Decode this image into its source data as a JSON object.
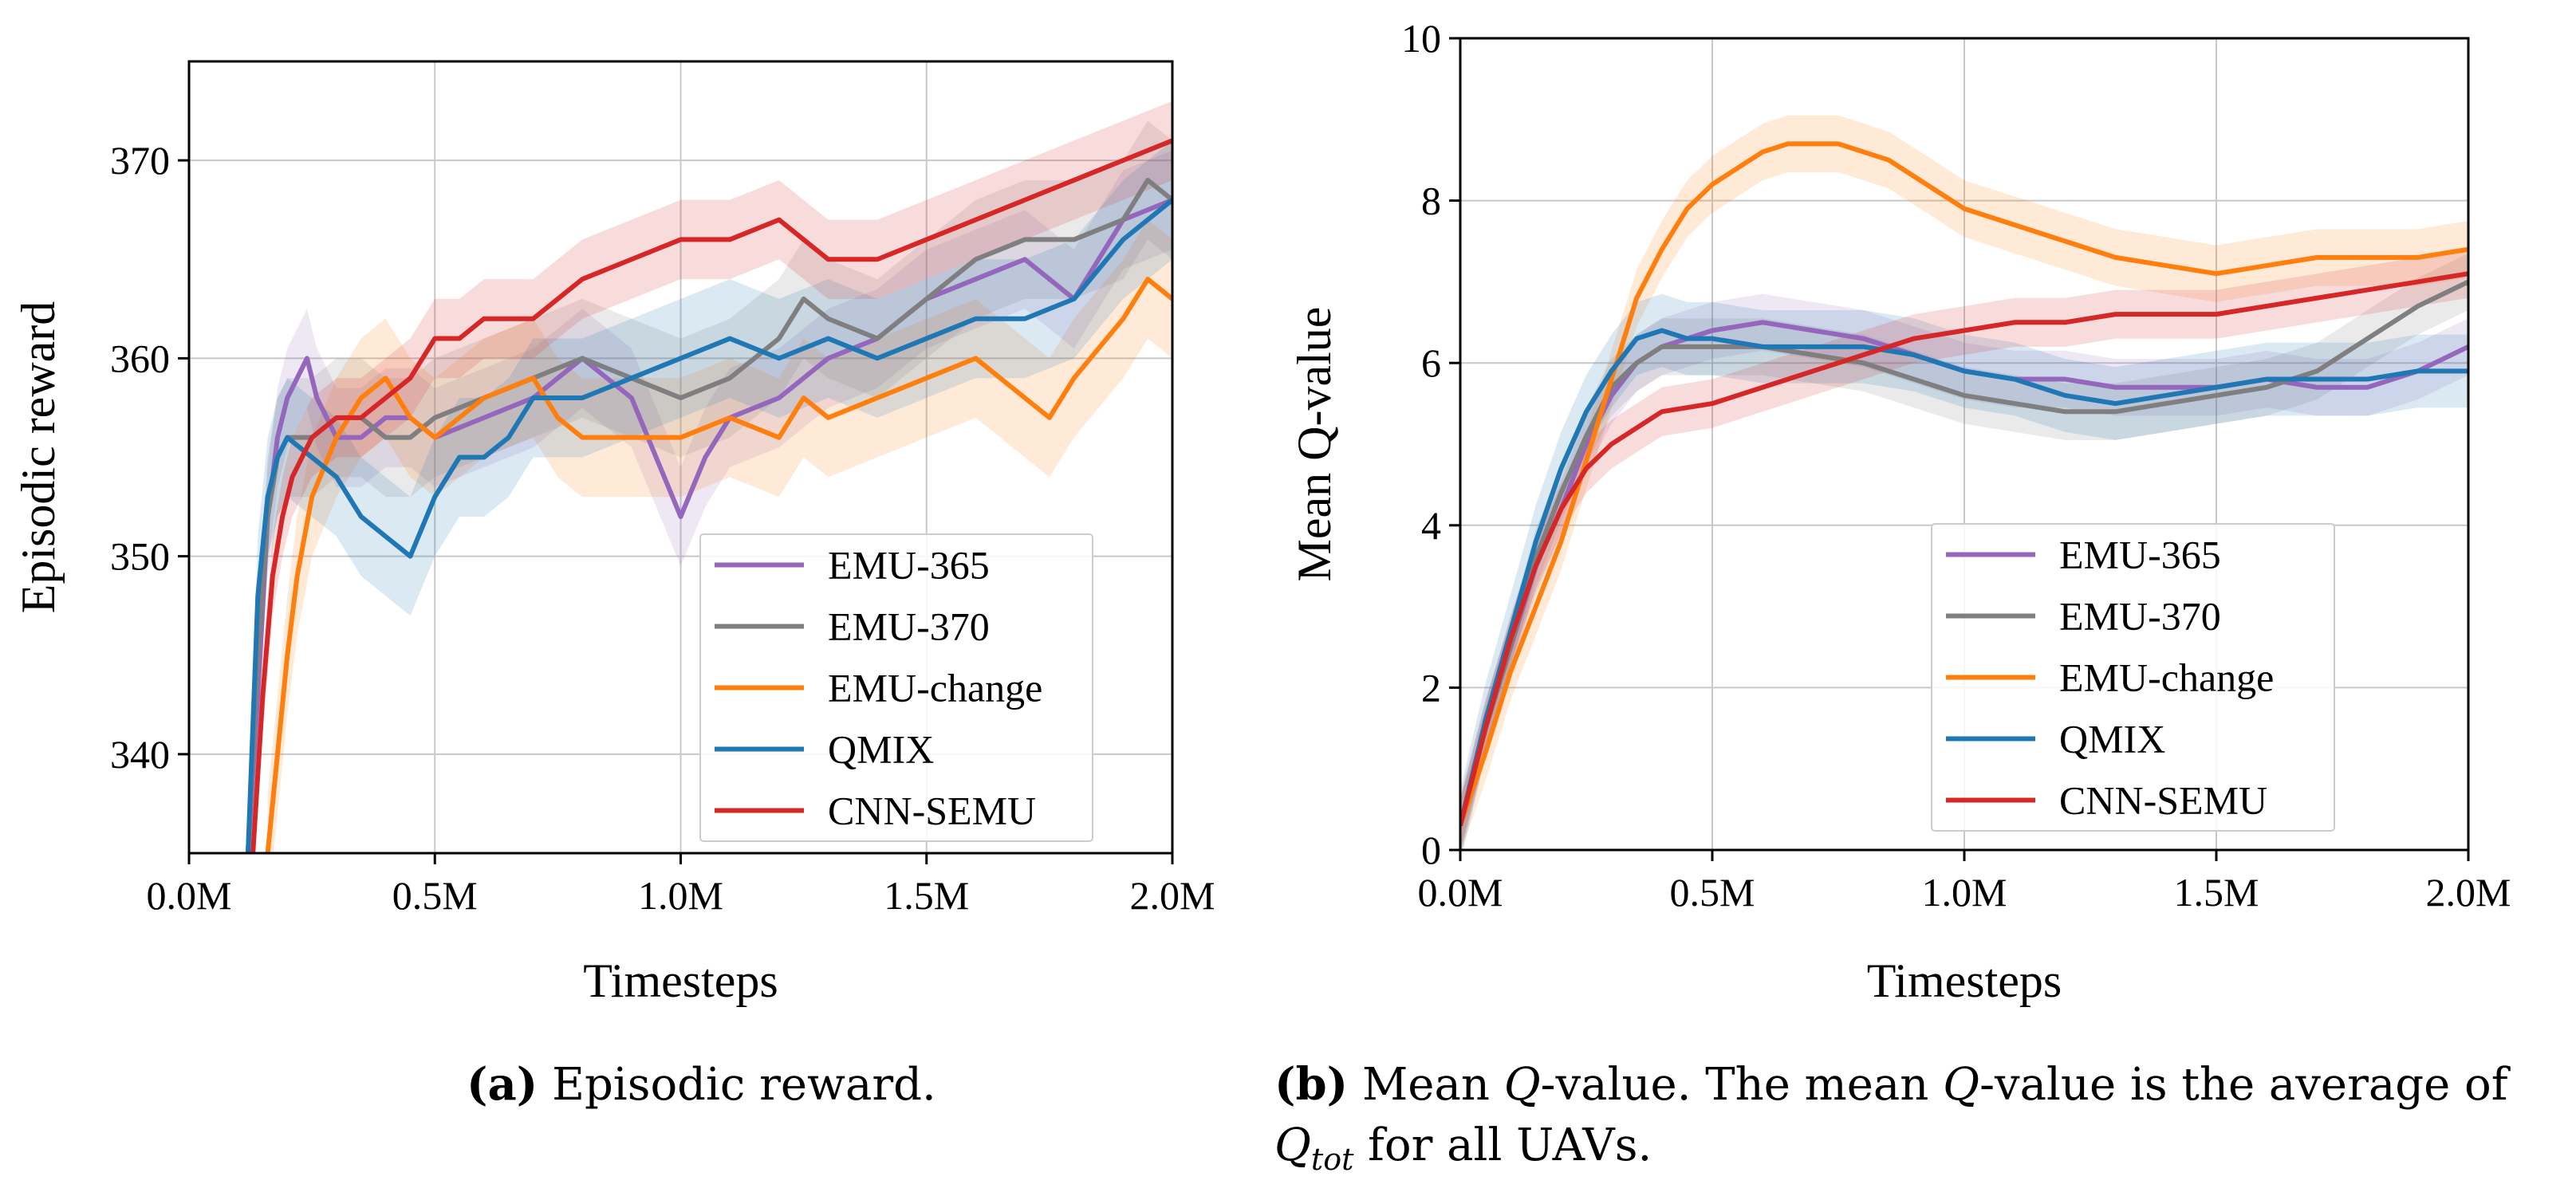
{
  "chart_data": [
    {
      "type": "line",
      "panel": "a",
      "ylabel": "Episodic reward",
      "xlabel": "Timesteps",
      "xlim": [
        0,
        2.0
      ],
      "ylim": [
        335,
        375
      ],
      "xticks": [
        0,
        0.5,
        1.0,
        1.5,
        2.0
      ],
      "xtick_labels": [
        "0.0M",
        "0.5M",
        "1.0M",
        "1.5M",
        "2.0M"
      ],
      "yticks": [
        340,
        350,
        360,
        370
      ],
      "ytick_labels": [
        "340",
        "350",
        "360",
        "370"
      ],
      "grid": true,
      "legend_position": "lower-right",
      "series": [
        {
          "name": "EMU-365",
          "color": "#9467bd",
          "x": [
            0.12,
            0.14,
            0.16,
            0.18,
            0.2,
            0.22,
            0.24,
            0.26,
            0.3,
            0.35,
            0.4,
            0.45,
            0.5,
            0.6,
            0.7,
            0.8,
            0.9,
            0.95,
            1.0,
            1.05,
            1.1,
            1.2,
            1.3,
            1.4,
            1.5,
            1.6,
            1.7,
            1.8,
            1.9,
            2.0
          ],
          "y": [
            335,
            343,
            352,
            356,
            358,
            359,
            360,
            358,
            356,
            356,
            357,
            357,
            356,
            357,
            358,
            360,
            358,
            355,
            352,
            355,
            357,
            358,
            360,
            361,
            363,
            364,
            365,
            363,
            367,
            368
          ],
          "band": 2.5
        },
        {
          "name": "EMU-370",
          "color": "#7f7f7f",
          "x": [
            0.12,
            0.14,
            0.16,
            0.18,
            0.2,
            0.25,
            0.3,
            0.35,
            0.4,
            0.45,
            0.5,
            0.6,
            0.7,
            0.8,
            0.9,
            1.0,
            1.1,
            1.2,
            1.25,
            1.3,
            1.4,
            1.5,
            1.6,
            1.7,
            1.8,
            1.9,
            1.95,
            2.0
          ],
          "y": [
            335,
            345,
            352,
            355,
            356,
            356,
            357,
            357,
            356,
            356,
            357,
            358,
            359,
            360,
            359,
            358,
            359,
            361,
            363,
            362,
            361,
            363,
            365,
            366,
            366,
            367,
            369,
            368
          ],
          "band": 3.0
        },
        {
          "name": "EMU-change",
          "color": "#ff7f0e",
          "x": [
            0.16,
            0.18,
            0.2,
            0.22,
            0.25,
            0.3,
            0.35,
            0.4,
            0.45,
            0.5,
            0.55,
            0.6,
            0.7,
            0.75,
            0.8,
            0.9,
            1.0,
            1.1,
            1.2,
            1.25,
            1.3,
            1.4,
            1.5,
            1.6,
            1.7,
            1.75,
            1.8,
            1.9,
            1.95,
            2.0
          ],
          "y": [
            335,
            340,
            345,
            349,
            353,
            356,
            358,
            359,
            357,
            356,
            357,
            358,
            359,
            357,
            356,
            356,
            356,
            357,
            356,
            358,
            357,
            358,
            359,
            360,
            358,
            357,
            359,
            362,
            364,
            363
          ],
          "band": 3.0
        },
        {
          "name": "QMIX",
          "color": "#1f77b4",
          "x": [
            0.12,
            0.14,
            0.16,
            0.18,
            0.2,
            0.25,
            0.3,
            0.35,
            0.4,
            0.45,
            0.5,
            0.55,
            0.6,
            0.65,
            0.7,
            0.8,
            0.9,
            1.0,
            1.1,
            1.2,
            1.3,
            1.4,
            1.5,
            1.6,
            1.7,
            1.8,
            1.9,
            2.0
          ],
          "y": [
            335,
            348,
            353,
            355,
            356,
            355,
            354,
            352,
            351,
            350,
            353,
            355,
            355,
            356,
            358,
            358,
            359,
            360,
            361,
            360,
            361,
            360,
            361,
            362,
            362,
            363,
            366,
            368
          ],
          "band": 3.0
        },
        {
          "name": "CNN-SEMU",
          "color": "#d62728",
          "x": [
            0.13,
            0.15,
            0.17,
            0.19,
            0.21,
            0.25,
            0.3,
            0.35,
            0.4,
            0.45,
            0.5,
            0.55,
            0.6,
            0.7,
            0.8,
            0.9,
            1.0,
            1.1,
            1.2,
            1.3,
            1.4,
            1.5,
            1.6,
            1.7,
            1.8,
            1.9,
            2.0
          ],
          "y": [
            335,
            343,
            349,
            352,
            354,
            356,
            357,
            357,
            358,
            359,
            361,
            361,
            362,
            362,
            364,
            365,
            366,
            366,
            367,
            365,
            365,
            366,
            367,
            368,
            369,
            370,
            371
          ],
          "band": 2.0
        }
      ]
    },
    {
      "type": "line",
      "panel": "b",
      "ylabel": "Mean Q-value",
      "xlabel": "Timesteps",
      "xlim": [
        0,
        2.0
      ],
      "ylim": [
        0,
        10
      ],
      "xticks": [
        0,
        0.5,
        1.0,
        1.5,
        2.0
      ],
      "xtick_labels": [
        "0.0M",
        "0.5M",
        "1.0M",
        "1.5M",
        "2.0M"
      ],
      "yticks": [
        0,
        2,
        4,
        6,
        8,
        10
      ],
      "ytick_labels": [
        "0",
        "2",
        "4",
        "6",
        "8",
        "10"
      ],
      "grid": true,
      "legend_position": "lower-right",
      "series": [
        {
          "name": "EMU-365",
          "color": "#9467bd",
          "x": [
            0,
            0.05,
            0.1,
            0.15,
            0.2,
            0.25,
            0.3,
            0.35,
            0.4,
            0.5,
            0.6,
            0.7,
            0.8,
            0.9,
            1.0,
            1.1,
            1.2,
            1.3,
            1.4,
            1.5,
            1.6,
            1.7,
            1.8,
            1.9,
            2.0
          ],
          "y": [
            0.3,
            1.5,
            2.5,
            3.5,
            4.2,
            5.0,
            5.6,
            6.0,
            6.2,
            6.4,
            6.5,
            6.4,
            6.3,
            6.1,
            5.9,
            5.8,
            5.8,
            5.7,
            5.7,
            5.7,
            5.8,
            5.7,
            5.7,
            5.9,
            6.2
          ],
          "band": 0.35
        },
        {
          "name": "EMU-370",
          "color": "#7f7f7f",
          "x": [
            0,
            0.05,
            0.1,
            0.15,
            0.2,
            0.25,
            0.3,
            0.35,
            0.4,
            0.5,
            0.6,
            0.7,
            0.8,
            0.9,
            1.0,
            1.1,
            1.2,
            1.3,
            1.4,
            1.5,
            1.6,
            1.7,
            1.8,
            1.9,
            2.0
          ],
          "y": [
            0.3,
            1.5,
            2.5,
            3.6,
            4.4,
            5.1,
            5.7,
            6.0,
            6.2,
            6.2,
            6.2,
            6.1,
            6.0,
            5.8,
            5.6,
            5.5,
            5.4,
            5.4,
            5.5,
            5.6,
            5.7,
            5.9,
            6.3,
            6.7,
            7.0
          ],
          "band": 0.35
        },
        {
          "name": "EMU-change",
          "color": "#ff7f0e",
          "x": [
            0,
            0.05,
            0.1,
            0.15,
            0.2,
            0.25,
            0.3,
            0.35,
            0.4,
            0.45,
            0.5,
            0.55,
            0.6,
            0.65,
            0.7,
            0.75,
            0.8,
            0.85,
            0.9,
            0.95,
            1.0,
            1.1,
            1.2,
            1.3,
            1.4,
            1.5,
            1.6,
            1.7,
            1.8,
            1.9,
            2.0
          ],
          "y": [
            0.3,
            1.2,
            2.2,
            3.0,
            3.8,
            4.8,
            5.8,
            6.8,
            7.4,
            7.9,
            8.2,
            8.4,
            8.6,
            8.7,
            8.7,
            8.7,
            8.6,
            8.5,
            8.3,
            8.1,
            7.9,
            7.7,
            7.5,
            7.3,
            7.2,
            7.1,
            7.2,
            7.3,
            7.3,
            7.3,
            7.4
          ],
          "band": 0.35
        },
        {
          "name": "QMIX",
          "color": "#1f77b4",
          "x": [
            0,
            0.05,
            0.1,
            0.15,
            0.2,
            0.25,
            0.3,
            0.35,
            0.4,
            0.45,
            0.5,
            0.6,
            0.7,
            0.8,
            0.9,
            1.0,
            1.1,
            1.2,
            1.3,
            1.4,
            1.5,
            1.6,
            1.7,
            1.8,
            1.9,
            2.0
          ],
          "y": [
            0.3,
            1.6,
            2.7,
            3.8,
            4.7,
            5.4,
            5.9,
            6.3,
            6.4,
            6.3,
            6.3,
            6.2,
            6.2,
            6.2,
            6.1,
            5.9,
            5.8,
            5.6,
            5.5,
            5.6,
            5.7,
            5.8,
            5.8,
            5.8,
            5.9,
            5.9
          ],
          "band": 0.45
        },
        {
          "name": "CNN-SEMU",
          "color": "#d62728",
          "x": [
            0,
            0.05,
            0.1,
            0.15,
            0.2,
            0.25,
            0.3,
            0.35,
            0.4,
            0.5,
            0.6,
            0.7,
            0.8,
            0.9,
            1.0,
            1.1,
            1.2,
            1.3,
            1.4,
            1.5,
            1.6,
            1.7,
            1.8,
            1.9,
            2.0
          ],
          "y": [
            0.3,
            1.5,
            2.6,
            3.5,
            4.2,
            4.7,
            5.0,
            5.2,
            5.4,
            5.5,
            5.7,
            5.9,
            6.1,
            6.3,
            6.4,
            6.5,
            6.5,
            6.6,
            6.6,
            6.6,
            6.7,
            6.8,
            6.9,
            7.0,
            7.1
          ],
          "band": 0.3
        }
      ]
    }
  ],
  "captions": {
    "a_label": "(a)",
    "a_text": " Episodic reward.",
    "b_label": "(b)",
    "b_line1_pre": " Mean ",
    "b_q1": "Q",
    "b_line1_mid": "-value. The mean ",
    "b_q2": "Q",
    "b_line1_post": "-value is the average of",
    "b_qtot": "Q",
    "b_qtot_sub": "tot",
    "b_line2_post": " for all UAVs."
  }
}
